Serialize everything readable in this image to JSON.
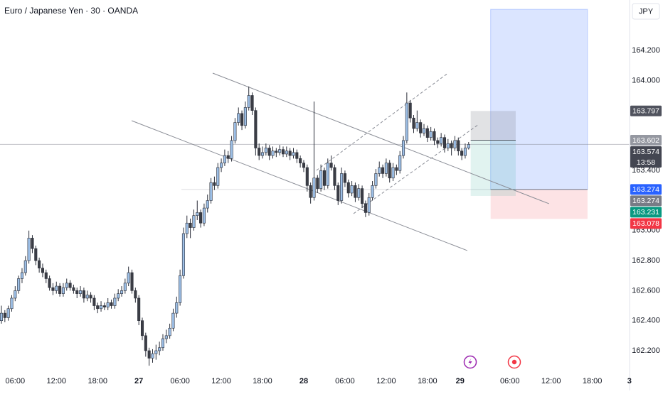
{
  "chart_data": {
    "type": "candlestick",
    "title": "Euro / Japanese Yen · 30 · OANDA",
    "currency": "JPY",
    "up_color": "#9dbfe6",
    "down_color": "#3b3d45",
    "wick_color": "#2a2e39",
    "drawing_color": "#8a8d96",
    "xlim": [
      -0.414,
      184.5
    ],
    "ylim": [
      162.077,
      164.536
    ],
    "yticks": [
      {
        "value": 162.2,
        "label": "162.200"
      },
      {
        "value": 162.4,
        "label": "162.400"
      },
      {
        "value": 162.6,
        "label": "162.600"
      },
      {
        "value": 162.8,
        "label": "162.800"
      },
      {
        "value": 163.0,
        "label": "163.000"
      },
      {
        "value": 163.4,
        "label": "163.400"
      },
      {
        "value": 164.0,
        "label": "164.000"
      },
      {
        "value": 164.2,
        "label": "164.200"
      }
    ],
    "xticks": [
      {
        "value": 4,
        "label": "06:00"
      },
      {
        "value": 16,
        "label": "12:00"
      },
      {
        "value": 28,
        "label": "18:00"
      },
      {
        "value": 40,
        "label": "27"
      },
      {
        "value": 52,
        "label": "06:00"
      },
      {
        "value": 64,
        "label": "12:00"
      },
      {
        "value": 76,
        "label": "18:00"
      },
      {
        "value": 88,
        "label": "28"
      },
      {
        "value": 100,
        "label": "06:00"
      },
      {
        "value": 112,
        "label": "12:00"
      },
      {
        "value": 124,
        "label": "18:00"
      },
      {
        "value": 133.5,
        "label": "29"
      },
      {
        "value": 148,
        "label": "06:00"
      },
      {
        "value": 160,
        "label": "12:00"
      },
      {
        "value": 172,
        "label": "18:00"
      },
      {
        "value": 182.8,
        "label": "3"
      }
    ],
    "ohlc": [
      [
        162.4,
        162.5,
        162.38,
        162.45
      ],
      [
        162.45,
        162.47,
        162.39,
        162.42
      ],
      [
        162.42,
        162.5,
        162.4,
        162.48
      ],
      [
        162.48,
        162.57,
        162.46,
        162.55
      ],
      [
        162.55,
        162.63,
        162.53,
        162.6
      ],
      [
        162.6,
        162.7,
        162.58,
        162.68
      ],
      [
        162.68,
        162.75,
        162.65,
        162.72
      ],
      [
        162.72,
        162.83,
        162.7,
        162.8
      ],
      [
        162.8,
        163.0,
        162.78,
        162.95
      ],
      [
        162.95,
        162.97,
        162.85,
        162.88
      ],
      [
        162.88,
        162.9,
        162.77,
        162.8
      ],
      [
        162.8,
        162.82,
        162.72,
        162.75
      ],
      [
        162.75,
        162.78,
        162.69,
        162.72
      ],
      [
        162.72,
        162.74,
        162.65,
        162.68
      ],
      [
        162.68,
        162.7,
        162.6,
        162.62
      ],
      [
        162.62,
        162.65,
        162.57,
        162.6
      ],
      [
        162.6,
        162.66,
        162.58,
        162.63
      ],
      [
        162.63,
        162.65,
        162.56,
        162.58
      ],
      [
        162.58,
        162.65,
        162.56,
        162.62
      ],
      [
        162.62,
        162.68,
        162.6,
        162.65
      ],
      [
        162.65,
        162.67,
        162.6,
        162.62
      ],
      [
        162.62,
        162.64,
        162.58,
        162.6
      ],
      [
        162.6,
        162.62,
        162.55,
        162.58
      ],
      [
        162.58,
        162.63,
        162.56,
        162.6
      ],
      [
        162.6,
        162.62,
        162.52,
        162.55
      ],
      [
        162.55,
        162.6,
        162.53,
        162.57
      ],
      [
        162.57,
        162.59,
        162.52,
        162.55
      ],
      [
        162.55,
        162.57,
        162.47,
        162.5
      ],
      [
        162.5,
        162.52,
        162.45,
        162.48
      ],
      [
        162.48,
        162.53,
        162.46,
        162.5
      ],
      [
        162.5,
        162.52,
        162.47,
        162.49
      ],
      [
        162.49,
        162.55,
        162.47,
        162.52
      ],
      [
        162.52,
        162.54,
        162.48,
        162.5
      ],
      [
        162.5,
        162.58,
        162.48,
        162.55
      ],
      [
        162.55,
        162.61,
        162.53,
        162.58
      ],
      [
        162.58,
        162.63,
        162.56,
        162.6
      ],
      [
        162.6,
        162.68,
        162.58,
        162.65
      ],
      [
        162.65,
        162.76,
        162.63,
        162.72
      ],
      [
        162.72,
        162.74,
        162.58,
        162.6
      ],
      [
        162.6,
        162.62,
        162.52,
        162.55
      ],
      [
        162.55,
        162.57,
        162.37,
        162.4
      ],
      [
        162.4,
        162.42,
        162.27,
        162.3
      ],
      [
        162.3,
        162.32,
        162.16,
        162.2
      ],
      [
        162.2,
        162.22,
        162.1,
        162.15
      ],
      [
        162.15,
        162.21,
        162.12,
        162.18
      ],
      [
        162.18,
        162.24,
        162.14,
        162.2
      ],
      [
        162.2,
        162.26,
        162.17,
        162.22
      ],
      [
        162.22,
        162.31,
        162.2,
        162.28
      ],
      [
        162.28,
        162.34,
        162.25,
        162.3
      ],
      [
        162.3,
        162.38,
        162.28,
        162.35
      ],
      [
        162.35,
        162.48,
        162.33,
        162.45
      ],
      [
        162.45,
        162.56,
        162.42,
        162.52
      ],
      [
        162.52,
        162.74,
        162.5,
        162.7
      ],
      [
        162.7,
        163.02,
        162.68,
        162.98
      ],
      [
        162.98,
        163.1,
        162.95,
        163.05
      ],
      [
        163.05,
        163.08,
        162.95,
        163.02
      ],
      [
        163.02,
        163.14,
        163.0,
        163.1
      ],
      [
        163.1,
        163.2,
        163.07,
        163.12
      ],
      [
        163.12,
        163.14,
        163.02,
        163.05
      ],
      [
        163.05,
        163.18,
        163.03,
        163.15
      ],
      [
        163.15,
        163.24,
        163.12,
        163.2
      ],
      [
        163.2,
        163.35,
        163.18,
        163.32
      ],
      [
        163.32,
        163.36,
        163.27,
        163.3
      ],
      [
        163.3,
        163.45,
        163.28,
        163.42
      ],
      [
        163.42,
        163.48,
        163.39,
        163.45
      ],
      [
        163.45,
        163.54,
        163.43,
        163.5
      ],
      [
        163.5,
        163.53,
        163.45,
        163.48
      ],
      [
        163.48,
        163.63,
        163.46,
        163.6
      ],
      [
        163.6,
        163.75,
        163.58,
        163.72
      ],
      [
        163.72,
        163.82,
        163.7,
        163.78
      ],
      [
        163.78,
        163.8,
        163.67,
        163.7
      ],
      [
        163.7,
        163.86,
        163.68,
        163.82
      ],
      [
        163.82,
        163.96,
        163.8,
        163.9
      ],
      [
        163.9,
        163.92,
        163.77,
        163.8
      ],
      [
        163.8,
        163.82,
        163.5,
        163.55
      ],
      [
        163.55,
        163.58,
        163.47,
        163.5
      ],
      [
        163.5,
        163.56,
        163.48,
        163.52
      ],
      [
        163.52,
        163.58,
        163.5,
        163.55
      ],
      [
        163.55,
        163.57,
        163.47,
        163.5
      ],
      [
        163.5,
        163.56,
        163.48,
        163.53
      ],
      [
        163.53,
        163.55,
        163.49,
        163.52
      ],
      [
        163.52,
        163.57,
        163.5,
        163.54
      ],
      [
        163.54,
        163.56,
        163.49,
        163.51
      ],
      [
        163.51,
        163.56,
        163.49,
        163.53
      ],
      [
        163.53,
        163.55,
        163.47,
        163.5
      ],
      [
        163.5,
        163.55,
        163.48,
        163.52
      ],
      [
        163.52,
        163.54,
        163.45,
        163.48
      ],
      [
        163.48,
        163.5,
        163.42,
        163.45
      ],
      [
        163.45,
        163.47,
        163.39,
        163.42
      ],
      [
        163.42,
        163.44,
        163.26,
        163.3
      ],
      [
        163.3,
        163.32,
        163.18,
        163.22
      ],
      [
        163.22,
        163.86,
        163.2,
        163.35
      ],
      [
        163.35,
        163.37,
        163.25,
        163.28
      ],
      [
        163.28,
        163.44,
        163.26,
        163.4
      ],
      [
        163.4,
        163.42,
        163.27,
        163.3
      ],
      [
        163.3,
        163.48,
        163.28,
        163.45
      ],
      [
        163.45,
        163.5,
        163.4,
        163.42
      ],
      [
        163.42,
        163.44,
        163.27,
        163.3
      ],
      [
        163.3,
        163.32,
        163.17,
        163.2
      ],
      [
        163.2,
        163.42,
        163.18,
        163.38
      ],
      [
        163.38,
        163.4,
        163.29,
        163.32
      ],
      [
        163.32,
        163.34,
        163.22,
        163.25
      ],
      [
        163.25,
        163.33,
        163.23,
        163.3
      ],
      [
        163.3,
        163.32,
        163.19,
        163.22
      ],
      [
        163.22,
        163.31,
        163.2,
        163.28
      ],
      [
        163.28,
        163.3,
        163.15,
        163.18
      ],
      [
        163.18,
        163.2,
        163.09,
        163.12
      ],
      [
        163.12,
        163.25,
        163.1,
        163.22
      ],
      [
        163.22,
        163.33,
        163.2,
        163.3
      ],
      [
        163.3,
        163.41,
        163.28,
        163.38
      ],
      [
        163.38,
        163.46,
        163.36,
        163.42
      ],
      [
        163.42,
        163.44,
        163.35,
        163.38
      ],
      [
        163.38,
        163.48,
        163.36,
        163.45
      ],
      [
        163.45,
        163.47,
        163.32,
        163.35
      ],
      [
        163.35,
        163.45,
        163.33,
        163.42
      ],
      [
        163.42,
        163.44,
        163.37,
        163.4
      ],
      [
        163.4,
        163.53,
        163.38,
        163.5
      ],
      [
        163.5,
        163.63,
        163.48,
        163.6
      ],
      [
        163.6,
        163.92,
        163.58,
        163.85
      ],
      [
        163.85,
        163.87,
        163.72,
        163.75
      ],
      [
        163.75,
        163.77,
        163.65,
        163.68
      ],
      [
        163.68,
        163.8,
        163.66,
        163.72
      ],
      [
        163.72,
        163.74,
        163.62,
        163.65
      ],
      [
        163.65,
        163.71,
        163.63,
        163.68
      ],
      [
        163.68,
        163.7,
        163.59,
        163.62
      ],
      [
        163.62,
        163.69,
        163.6,
        163.66
      ],
      [
        163.66,
        163.68,
        163.57,
        163.6
      ],
      [
        163.6,
        163.62,
        163.55,
        163.58
      ],
      [
        163.58,
        163.65,
        163.56,
        163.62
      ],
      [
        163.62,
        163.64,
        163.52,
        163.55
      ],
      [
        163.55,
        163.61,
        163.53,
        163.58
      ],
      [
        163.58,
        163.6,
        163.5,
        163.55
      ],
      [
        163.55,
        163.63,
        163.53,
        163.6
      ],
      [
        163.6,
        163.62,
        163.5,
        163.53
      ],
      [
        163.53,
        163.55,
        163.47,
        163.5
      ],
      [
        163.5,
        163.58,
        163.48,
        163.55
      ],
      [
        163.55,
        163.59,
        163.54,
        163.574
      ]
    ],
    "trendlines": [
      {
        "points": [
          [
            61.5,
            164.049
          ],
          [
            159.4,
            163.179
          ]
        ],
        "dashed": false
      },
      {
        "points": [
          [
            37.9,
            163.732
          ],
          [
            135.6,
            162.867
          ]
        ],
        "dashed": false
      },
      {
        "points": [
          [
            91.7,
            163.401
          ],
          [
            130.0,
            164.049
          ]
        ],
        "dashed": true
      },
      {
        "points": [
          [
            102.5,
            163.113
          ],
          [
            138.7,
            163.704
          ]
        ],
        "dashed": true
      }
    ],
    "position": {
      "start": 142.4,
      "end": 170.6,
      "entry_line_start": 52.4,
      "entry": 163.274,
      "stop": 163.078,
      "target": 164.474
    },
    "projection": {
      "start": 136.6,
      "end": 149.7,
      "top": 163.797,
      "mid": 163.602,
      "bottom": 163.231
    },
    "price_tags": [
      {
        "label": "163.797",
        "value": 163.797,
        "color": "#50535e"
      },
      {
        "label": "163.602",
        "value": 163.602,
        "color": "#9598a1"
      },
      {
        "label": "163.574",
        "value": 163.574,
        "color": "#434651"
      },
      {
        "label": "163.274",
        "value": 163.274,
        "color": "#2962ff"
      },
      {
        "label": "163.274",
        "value": 163.274,
        "color": "#787b86"
      },
      {
        "label": "163.231",
        "value": 163.231,
        "color": "#089981"
      },
      {
        "label": "163.078",
        "value": 163.078,
        "color": "#f23645"
      }
    ],
    "countdown": "13:58"
  }
}
